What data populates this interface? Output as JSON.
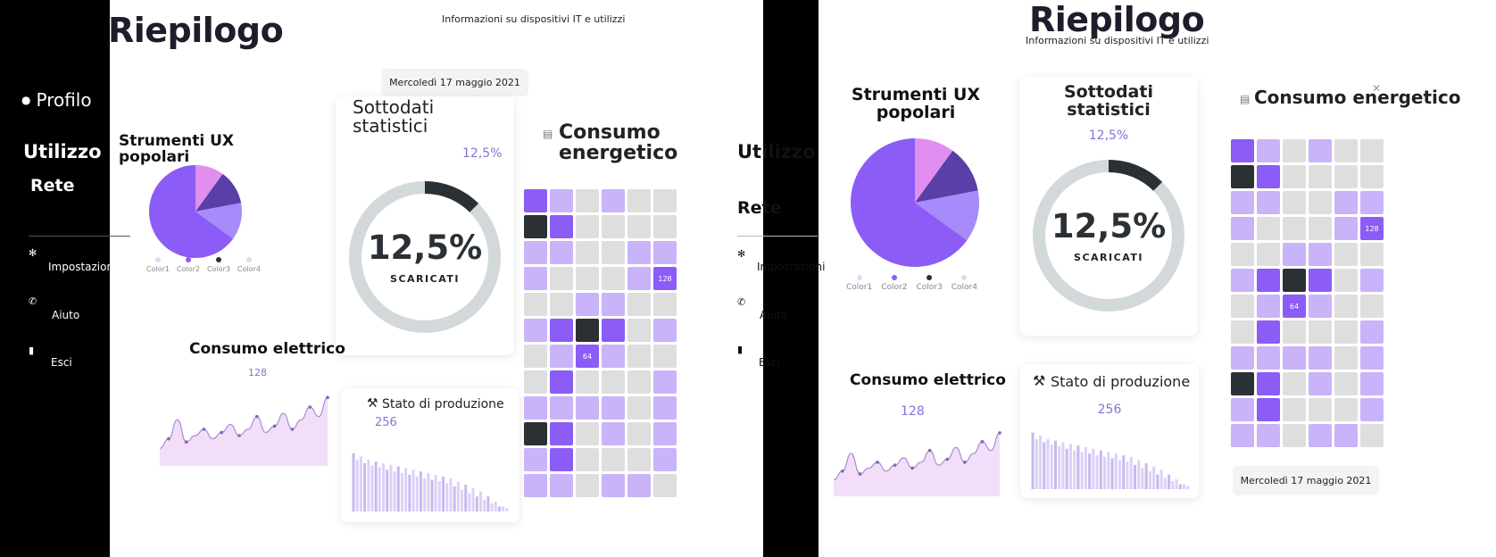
{
  "app": {
    "title": "Riepilogo",
    "subtitle": "Informazioni su dispositivi IT e utilizzi",
    "date": "Mercoledì 17 maggio 2021"
  },
  "sidebar": {
    "profile": "Profilo",
    "utilizzo": "Utilizzo",
    "rete": "Rete",
    "impostazioni": "Impostazioni",
    "aiuto": "Aiuto",
    "esci": "Esci"
  },
  "pie_card": {
    "title": "Strumenti UX popolari",
    "legend": [
      "Color1",
      "Color2",
      "Color3",
      "Color4"
    ]
  },
  "stats_card": {
    "title": "Sottodati statistici",
    "value": "12,5%",
    "center_value": "12,5%",
    "center_label": "SCARICATI",
    "fraction": 0.125
  },
  "electric_card": {
    "title": "Consumo elettrico",
    "value": "128"
  },
  "production_card": {
    "title": "Stato di produzione",
    "value": "256"
  },
  "energy_card": {
    "title": "Consumo energetico",
    "labels": {
      "label_a": "128",
      "label_b": "64"
    }
  },
  "colors": {
    "purple_main": "#8b5cf6",
    "purple_light": "#c9b3f9",
    "purple_pink": "#e08ef0",
    "purple_dark": "#5b3fa8",
    "charcoal": "#2b3035",
    "grey_cell": "#dedede",
    "ring_grey": "#d3d8db",
    "accent_text": "#8a70d6"
  },
  "chart_data": [
    {
      "type": "pie",
      "title": "Strumenti UX popolari",
      "categories": [
        "Color1",
        "Color2",
        "Color3",
        "Color4"
      ],
      "values": [
        10,
        65,
        12,
        13
      ],
      "colors": [
        "#e08ef0",
        "#8b5cf6",
        "#5b3fa8",
        "#a78bfa"
      ]
    },
    {
      "type": "area",
      "title": "Consumo elettrico",
      "x": [
        1,
        2,
        3,
        4,
        5,
        6,
        7,
        8,
        9,
        10,
        11,
        12,
        13,
        14,
        15,
        16,
        17,
        18,
        19,
        20
      ],
      "values": [
        40,
        46,
        58,
        44,
        48,
        52,
        46,
        50,
        55,
        48,
        52,
        60,
        50,
        54,
        62,
        52,
        58,
        66,
        60,
        72
      ]
    },
    {
      "type": "bar",
      "title": "Stato di produzione",
      "categories": [
        "1",
        "2",
        "3",
        "4",
        "5",
        "6",
        "7",
        "8",
        "9",
        "10",
        "11",
        "12",
        "13",
        "14",
        "15",
        "16",
        "17",
        "18",
        "19",
        "20",
        "21",
        "22",
        "23",
        "24",
        "25",
        "26",
        "27",
        "28",
        "29",
        "30",
        "31",
        "32",
        "33",
        "34",
        "35",
        "36",
        "37",
        "38",
        "39",
        "40",
        "41",
        "42"
      ],
      "values": [
        70,
        62,
        66,
        58,
        62,
        55,
        60,
        53,
        58,
        50,
        56,
        48,
        54,
        46,
        52,
        44,
        50,
        42,
        48,
        40,
        46,
        38,
        44,
        36,
        42,
        34,
        40,
        30,
        36,
        26,
        32,
        22,
        28,
        18,
        24,
        14,
        18,
        10,
        12,
        6,
        6,
        4
      ]
    },
    {
      "type": "heatmap",
      "title": "Consumo energetico",
      "levels": [
        "empty",
        "light",
        "medium",
        "dark"
      ],
      "rows": [
        [
          2,
          1,
          0,
          1,
          0,
          0
        ],
        [
          3,
          2,
          0,
          0,
          0,
          0
        ],
        [
          1,
          1,
          0,
          0,
          1,
          1
        ],
        [
          1,
          0,
          0,
          0,
          1,
          2
        ],
        [
          0,
          0,
          1,
          1,
          0,
          0
        ],
        [
          1,
          2,
          3,
          2,
          0,
          1
        ],
        [
          0,
          1,
          2,
          1,
          0,
          0
        ],
        [
          0,
          2,
          0,
          0,
          0,
          1
        ],
        [
          1,
          1,
          1,
          1,
          0,
          1
        ],
        [
          3,
          2,
          0,
          1,
          0,
          1
        ],
        [
          1,
          2,
          0,
          0,
          0,
          1
        ],
        [
          1,
          1,
          0,
          1,
          1,
          0
        ]
      ]
    }
  ]
}
